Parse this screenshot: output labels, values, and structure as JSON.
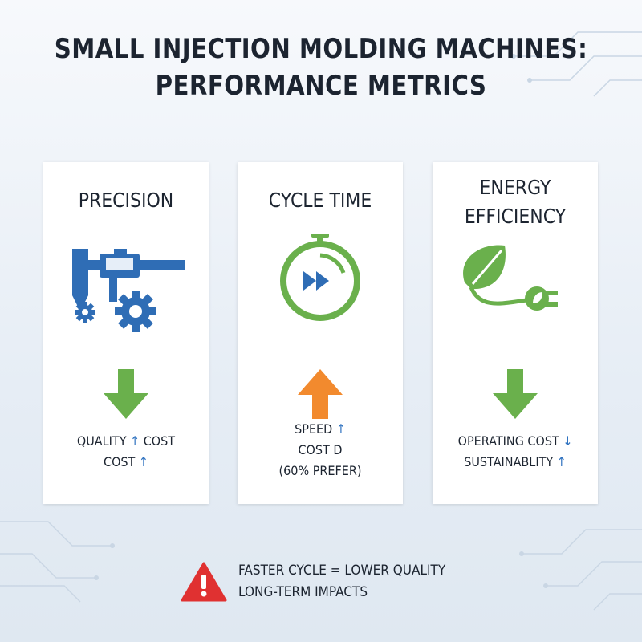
{
  "header": {
    "title": [
      "SMALL INJECTION MOLDING MACHINES:",
      "PERFORMANCE METRICS"
    ]
  },
  "cards": [
    {
      "title": [
        "PRECISION"
      ],
      "lines": [
        "QUALITY ↑ COST",
        "COST ↑"
      ]
    },
    {
      "title": [
        "CYCLE TIME"
      ],
      "lines": [
        "SPEED ↑",
        "COST D",
        "(60% PREFER)"
      ]
    },
    {
      "title": [
        "ENERGY",
        "EFFICIENCY"
      ],
      "lines": [
        "OPERATING COST ↓",
        "SUSTAINABLITY ↑"
      ]
    }
  ],
  "warning": {
    "lines": [
      "FASTER CYCLE = LOWER QUALITY",
      "LONG-TERM IMPACTS"
    ]
  }
}
